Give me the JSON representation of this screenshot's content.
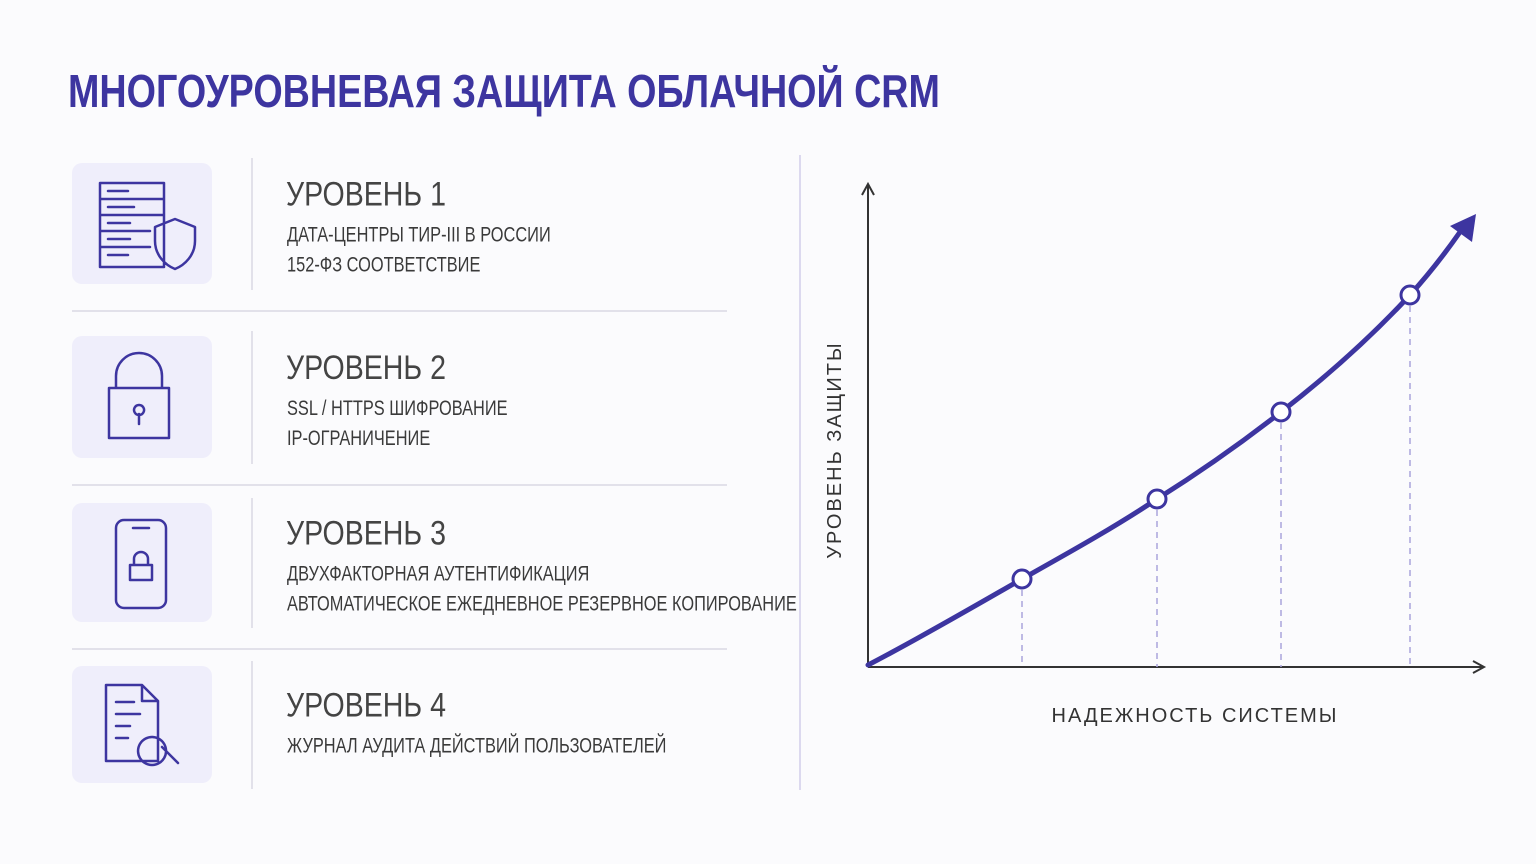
{
  "header": {
    "title": "МНОГОУРОВНЕВАЯ ЗАЩИТА ОБЛАЧНОЙ CRM"
  },
  "levels": [
    {
      "title": "УРОВЕНЬ 1",
      "lines": [
        "ДАТА-ЦЕНТРЫ ТИР-III В РОССИИ",
        "152-ФЗ СООТВЕТСТВИЕ"
      ]
    },
    {
      "title": "УРОВЕНЬ 2",
      "lines": [
        "SSL / HTTPS ШИФРОВАНИЕ",
        "IP-ОГРАНИЧЕНИЕ"
      ]
    },
    {
      "title": "УРОВЕНЬ 3",
      "lines": [
        "ДВУХФАКТОРНАЯ АУТЕНТИФИКАЦИЯ",
        "АВТОМАТИЧЕСКОЕ ЕЖЕДНЕВНОЕ РЕЗЕРВНОЕ КОПИРОВАНИЕ"
      ]
    },
    {
      "title": "УРОВЕНЬ 4",
      "lines": [
        "ЖУРНАЛ АУДИТА ДЕЙСТВИЙ ПОЛЬЗОВАТЕЛЕЙ"
      ]
    }
  ],
  "diagram": {
    "x_label": "НАДЕЖНОСТЬ СИСТЕМЫ",
    "y_label": "УРОВЕНЬ ЗАЩИТЫ"
  }
}
